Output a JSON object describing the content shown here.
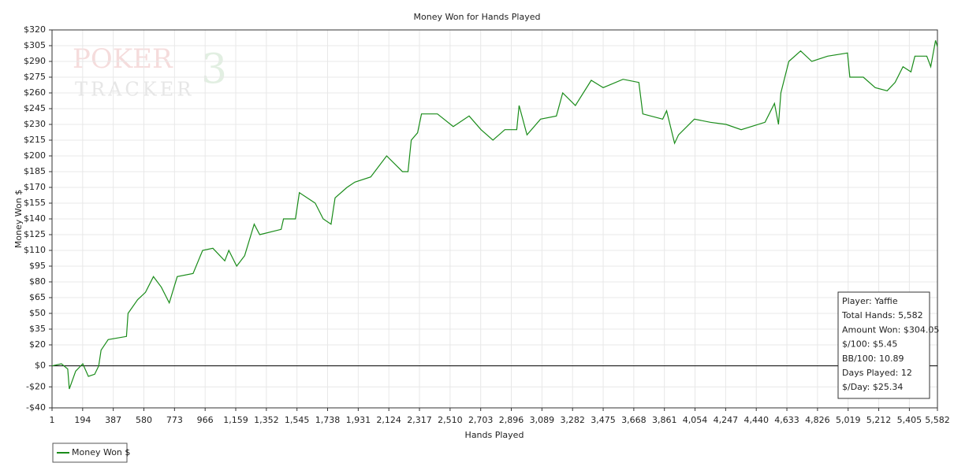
{
  "chart_data": {
    "type": "line",
    "title": "Money Won for Hands Played",
    "xlabel": "Hands Played",
    "ylabel": "Money Won $",
    "watermark": [
      "POKER",
      "TRACKER",
      "3"
    ],
    "x": [
      1,
      60,
      100,
      110,
      150,
      195,
      230,
      270,
      295,
      310,
      355,
      470,
      480,
      540,
      590,
      640,
      690,
      740,
      790,
      890,
      950,
      1015,
      1090,
      1115,
      1165,
      1215,
      1275,
      1310,
      1445,
      1460,
      1535,
      1560,
      1660,
      1710,
      1760,
      1785,
      1860,
      1910,
      2010,
      2110,
      2210,
      2245,
      2265,
      2305,
      2330,
      2430,
      2530,
      2630,
      2705,
      2780,
      2855,
      2930,
      2945,
      2995,
      3080,
      3180,
      3220,
      3300,
      3400,
      3475,
      3600,
      3700,
      3725,
      3850,
      3875,
      3925,
      3950,
      4050,
      4150,
      4250,
      4345,
      4495,
      4555,
      4580,
      4595,
      4645,
      4720,
      4790,
      4890,
      5015,
      5030,
      5115,
      5190,
      5265,
      5315,
      5365,
      5415,
      5440,
      5515,
      5540,
      5570,
      5582
    ],
    "series": [
      {
        "name": "Money Won $",
        "color": "#1a8c1a",
        "values": [
          0,
          2,
          -3,
          -22,
          -5,
          2,
          -10,
          -8,
          0,
          15,
          25,
          28,
          50,
          63,
          70,
          85,
          75,
          60,
          85,
          88,
          110,
          112,
          100,
          110,
          95,
          105,
          135,
          125,
          130,
          140,
          140,
          165,
          155,
          140,
          135,
          160,
          170,
          175,
          180,
          200,
          185,
          185,
          215,
          222,
          240,
          240,
          228,
          238,
          225,
          215,
          225,
          225,
          248,
          220,
          235,
          238,
          260,
          248,
          272,
          265,
          273,
          270,
          240,
          235,
          243,
          212,
          220,
          235,
          232,
          230,
          225,
          232,
          250,
          230,
          260,
          290,
          300,
          290,
          295,
          298,
          275,
          275,
          265,
          262,
          270,
          285,
          280,
          295,
          295,
          285,
          310,
          304.05
        ]
      }
    ],
    "xlim": [
      1,
      5582
    ],
    "xticks": [
      1,
      194,
      387,
      580,
      773,
      966,
      {
        "value": 1159,
        "label": "1,159"
      },
      {
        "value": 1352,
        "label": "1,352"
      },
      {
        "value": 1545,
        "label": "1,545"
      },
      {
        "value": 1738,
        "label": "1,738"
      },
      {
        "value": 1931,
        "label": "1,931"
      },
      {
        "value": 2124,
        "label": "2,124"
      },
      {
        "value": 2317,
        "label": "2,317"
      },
      {
        "value": 2510,
        "label": "2,510"
      },
      {
        "value": 2703,
        "label": "2,703"
      },
      {
        "value": 2896,
        "label": "2,896"
      },
      {
        "value": 3089,
        "label": "3,089"
      },
      {
        "value": 3282,
        "label": "3,282"
      },
      {
        "value": 3475,
        "label": "3,475"
      },
      {
        "value": 3668,
        "label": "3,668"
      },
      {
        "value": 3861,
        "label": "3,861"
      },
      {
        "value": 4054,
        "label": "4,054"
      },
      {
        "value": 4247,
        "label": "4,247"
      },
      {
        "value": 4440,
        "label": "4,440"
      },
      {
        "value": 4633,
        "label": "4,633"
      },
      {
        "value": 4826,
        "label": "4,826"
      },
      {
        "value": 5019,
        "label": "5,019"
      },
      {
        "value": 5212,
        "label": "5,212"
      },
      {
        "value": 5405,
        "label": "5,405"
      },
      {
        "value": 5582,
        "label": "5,582"
      }
    ],
    "ylim": [
      -40,
      320
    ],
    "yticks": [
      {
        "value": -40,
        "label": "-$40"
      },
      {
        "value": -20,
        "label": "-$20"
      },
      {
        "value": 0,
        "label": "$0"
      },
      {
        "value": 20,
        "label": "$20"
      },
      {
        "value": 35,
        "label": "$35"
      },
      {
        "value": 50,
        "label": "$50"
      },
      {
        "value": 65,
        "label": "$65"
      },
      {
        "value": 80,
        "label": "$80"
      },
      {
        "value": 95,
        "label": "$95"
      },
      {
        "value": 110,
        "label": "$110"
      },
      {
        "value": 125,
        "label": "$125"
      },
      {
        "value": 140,
        "label": "$140"
      },
      {
        "value": 155,
        "label": "$155"
      },
      {
        "value": 170,
        "label": "$170"
      },
      {
        "value": 185,
        "label": "$185"
      },
      {
        "value": 200,
        "label": "$200"
      },
      {
        "value": 215,
        "label": "$215"
      },
      {
        "value": 230,
        "label": "$230"
      },
      {
        "value": 245,
        "label": "$245"
      },
      {
        "value": 260,
        "label": "$260"
      },
      {
        "value": 275,
        "label": "$275"
      },
      {
        "value": 290,
        "label": "$290"
      },
      {
        "value": 305,
        "label": "$305"
      },
      {
        "value": 320,
        "label": "$320"
      }
    ],
    "grid": true,
    "info_box": [
      "Player: Yaffie",
      "Total Hands: 5,582",
      "Amount Won: $304.05",
      "$/100: $5.45",
      "BB/100: 10.89",
      "Days Played: 12",
      "$/Day: $25.34"
    ],
    "legend": "bottom-left"
  }
}
